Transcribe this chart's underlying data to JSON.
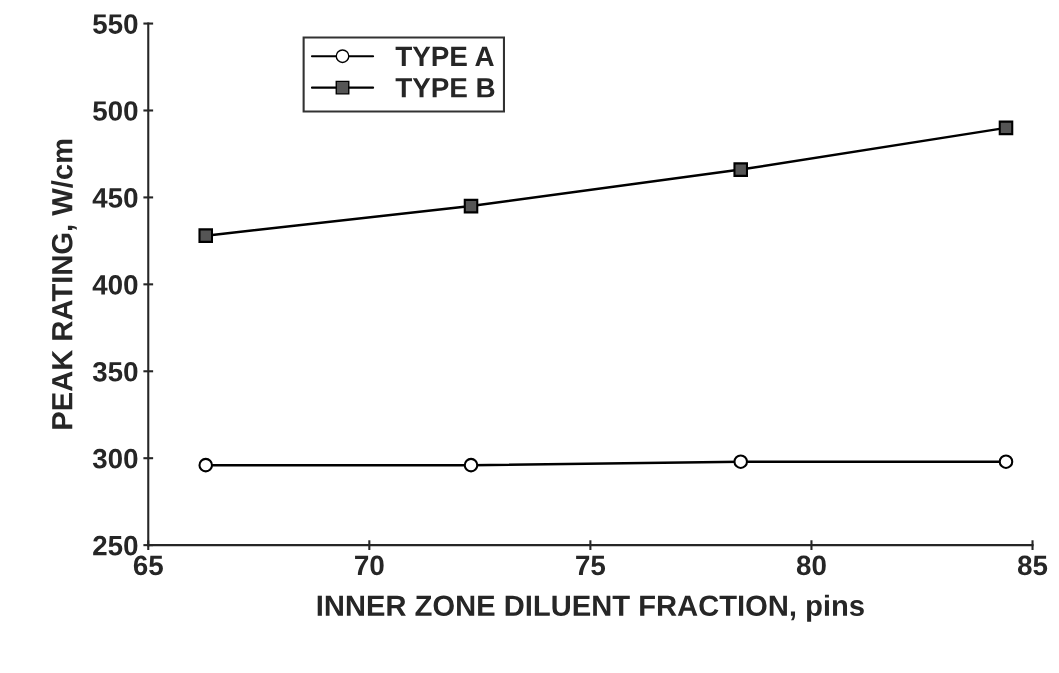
{
  "chart_data": {
    "type": "line",
    "xlabel": "INNER ZONE DILUENT FRACTION, pins",
    "ylabel": "PEAK RATING, W/cm",
    "x": [
      66.3,
      72.3,
      78.4,
      84.4
    ],
    "series": [
      {
        "name": "TYPE A",
        "color": "#000000",
        "marker": "circle",
        "values": [
          296,
          296,
          298,
          298
        ]
      },
      {
        "name": "TYPE B",
        "color": "#000000",
        "marker": "square",
        "values": [
          428,
          445,
          466,
          490
        ]
      }
    ],
    "xlim": [
      65,
      85
    ],
    "xticks": [
      65,
      70,
      75,
      80,
      85
    ],
    "ylim": [
      250,
      550
    ],
    "yticks": [
      250,
      300,
      350,
      400,
      450,
      500,
      550
    ],
    "grid": false,
    "legend": "top left",
    "line_style": "solid"
  }
}
